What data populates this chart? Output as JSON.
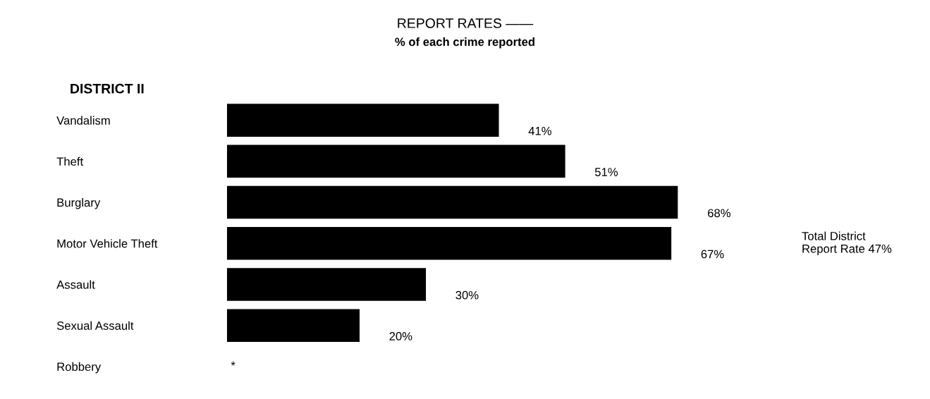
{
  "chart_data": {
    "type": "bar",
    "orientation": "horizontal",
    "title": "REPORT RATES ——",
    "subtitle": "% of each crime reported",
    "categories": [
      "Vandalism",
      "Theft",
      "Burglary",
      "Motor Vehicle Theft",
      "Assault",
      "Sexual Assault",
      "Robbery"
    ],
    "values": [
      41,
      51,
      68,
      67,
      30,
      20,
      null
    ],
    "value_labels": [
      "41%",
      "51%",
      "68%",
      "67%",
      "30%",
      "20%",
      "*"
    ],
    "color": "#000000",
    "annotations": [
      "DISTRICT II",
      "Total District\nReport Rate 47%"
    ]
  }
}
